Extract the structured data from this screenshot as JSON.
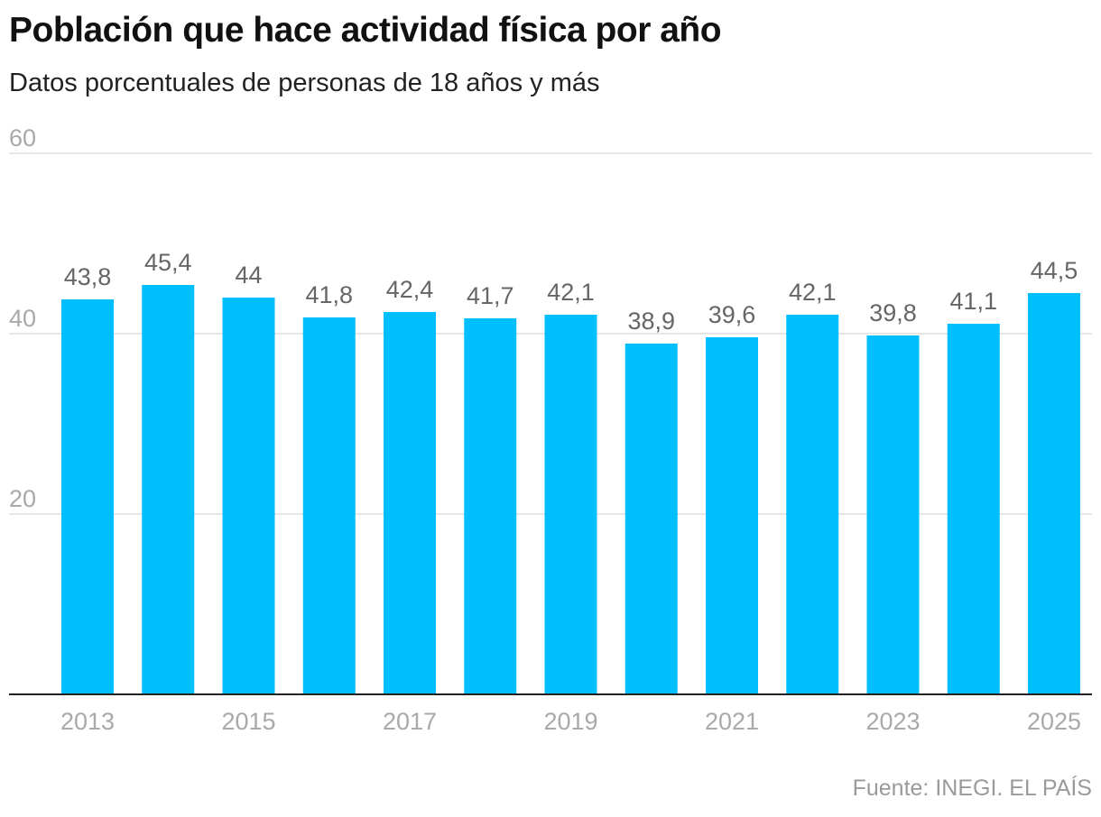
{
  "header": {
    "title": "Población que hace actividad física por año",
    "subtitle": "Datos porcentuales de personas de 18 años y más"
  },
  "footer": {
    "source": "Fuente: INEGI. EL PAÍS"
  },
  "colors": {
    "bar": "#00bfff",
    "grid": "#dddddd",
    "axis": "#222222"
  },
  "chart_data": {
    "type": "bar",
    "categories": [
      "2013",
      "2014",
      "2015",
      "2016",
      "2017",
      "2018",
      "2019",
      "2020",
      "2021",
      "2022",
      "2023",
      "2024",
      "2025"
    ],
    "values": [
      43.8,
      45.4,
      44,
      41.8,
      42.4,
      41.7,
      42.1,
      38.9,
      39.6,
      42.1,
      39.8,
      41.1,
      44.5
    ],
    "value_labels": [
      "43,8",
      "45,4",
      "44",
      "41,8",
      "42,4",
      "41,7",
      "42,1",
      "38,9",
      "39,6",
      "42,1",
      "39,8",
      "41,1",
      "44,5"
    ],
    "x_tick_labels": [
      "2013",
      "",
      "2015",
      "",
      "2017",
      "",
      "2019",
      "",
      "2021",
      "",
      "2023",
      "",
      "2025"
    ],
    "y_ticks": [
      20,
      40,
      60
    ],
    "y_tick_labels": [
      "20",
      "40",
      "60"
    ],
    "ylim": [
      0,
      60
    ],
    "grid": true,
    "legend": "none"
  }
}
